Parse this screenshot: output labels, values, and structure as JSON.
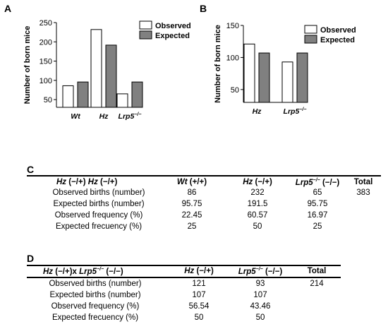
{
  "chart_data": [
    {
      "panel": "A",
      "type": "bar",
      "ylabel": "Number of born mice",
      "ylim": [
        30,
        250
      ],
      "yticks": [
        50,
        100,
        150,
        200,
        250
      ],
      "categories": [
        "Wt",
        "Hz",
        "Lrp5−/−"
      ],
      "series": [
        {
          "name": "Observed",
          "color": "#ffffff",
          "values": [
            86,
            232,
            65
          ]
        },
        {
          "name": "Expected",
          "color": "#808080",
          "values": [
            95.75,
            191.5,
            95.75
          ]
        }
      ],
      "legend": "top-right",
      "grid": false
    },
    {
      "panel": "B",
      "type": "bar",
      "ylabel": "Number of born mice",
      "ylim": [
        30,
        150
      ],
      "yticks": [
        50,
        100,
        150
      ],
      "categories": [
        "Hz",
        "Lrp5−/−"
      ],
      "series": [
        {
          "name": "Observed",
          "color": "#ffffff",
          "values": [
            121,
            93
          ]
        },
        {
          "name": "Expected",
          "color": "#808080",
          "values": [
            107,
            107
          ]
        }
      ],
      "legend": "top-right",
      "grid": false
    }
  ],
  "table_c": {
    "letter": "C",
    "header": {
      "cross_a": "Hz",
      "cross_a_geno": "(−/+)",
      "cross_b": "Hz",
      "cross_b_geno": "(−/+)",
      "col1": "Wt",
      "col1_geno": "(+/+)",
      "col2": "Hz",
      "col2_geno": "(−/+)",
      "col3": "Lrp5",
      "col3_sup": "−/−",
      "col3_geno": "(−/−)",
      "total": "Total"
    },
    "rows": [
      {
        "label": "Observed births (number)",
        "v1": "86",
        "v2": "232",
        "v3": "65",
        "total": "383"
      },
      {
        "label": "Expected births (number)",
        "v1": "95.75",
        "v2": "191.5",
        "v3": "95.75",
        "total": ""
      },
      {
        "label": "Observed frequency (%)",
        "v1": "22.45",
        "v2": "60.57",
        "v3": "16.97",
        "total": ""
      },
      {
        "label": "Expected frecuency (%)",
        "v1": "25",
        "v2": "50",
        "v3": "25",
        "total": ""
      }
    ]
  },
  "table_d": {
    "letter": "D",
    "header": {
      "cross_a": "Hz",
      "cross_a_geno": "(−/+)x",
      "cross_b": "Lrp5",
      "cross_b_sup": "−/−",
      "cross_b_geno": "(−/−)",
      "col1": "Hz",
      "col1_geno": "(−/+)",
      "col2": "Lrp5",
      "col2_sup": "−/−",
      "col2_geno": "(−/−)",
      "total": "Total"
    },
    "rows": [
      {
        "label": "Observed births (number)",
        "v1": "121",
        "v2": "93",
        "total": "214"
      },
      {
        "label": "Expected births (number)",
        "v1": "107",
        "v2": "107",
        "total": ""
      },
      {
        "label": "Observed frequency (%)",
        "v1": "56.54",
        "v2": "43.46",
        "total": ""
      },
      {
        "label": "Expected frecuency (%)",
        "v1": "50",
        "v2": "50",
        "total": ""
      }
    ]
  }
}
